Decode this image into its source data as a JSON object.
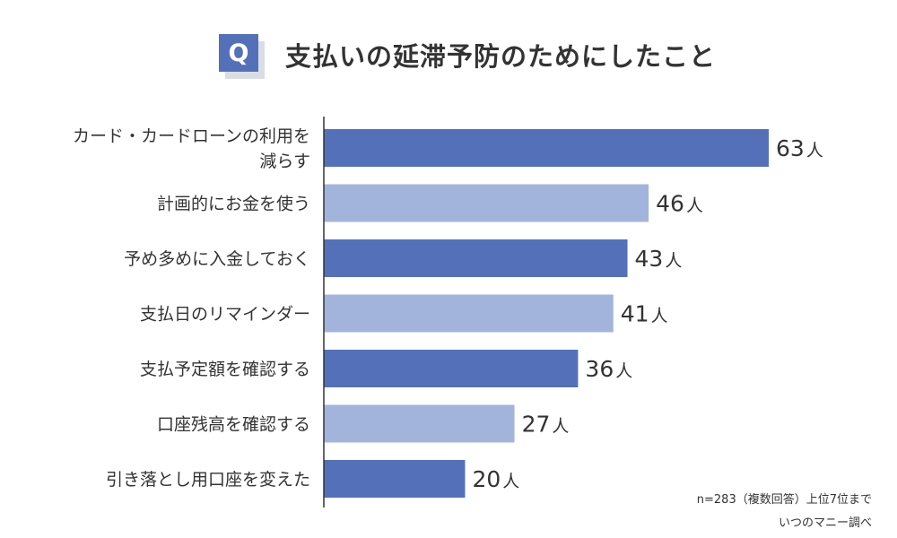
{
  "header": {
    "badge": "Q",
    "title": "支払いの延滞予防のためにしたこと"
  },
  "chart_data": {
    "type": "bar",
    "orientation": "horizontal",
    "categories": [
      [
        "カード・カードローンの利用を",
        "減らす"
      ],
      [
        "計画的にお金を使う"
      ],
      [
        "予め多めに入金しておく"
      ],
      [
        "支払日のリマインダー"
      ],
      [
        "支払予定額を確認する"
      ],
      [
        "口座残高を確認する"
      ],
      [
        "引き落とし用口座を変えた"
      ]
    ],
    "values": [
      63,
      46,
      43,
      41,
      36,
      27,
      20
    ],
    "value_unit": "人",
    "colors": [
      "#5470b8",
      "#a3b4dc",
      "#5470b8",
      "#a3b4dc",
      "#5470b8",
      "#a3b4dc",
      "#5470b8"
    ],
    "axis_color": "#333333",
    "title": "支払いの延滞予防のためにしたこと",
    "xlabel": "",
    "ylabel": "",
    "grid": false,
    "legend": "none"
  },
  "footnotes": {
    "sample": "n=283（複数回答）上位7位まで",
    "source": "いつのマニー調べ"
  }
}
